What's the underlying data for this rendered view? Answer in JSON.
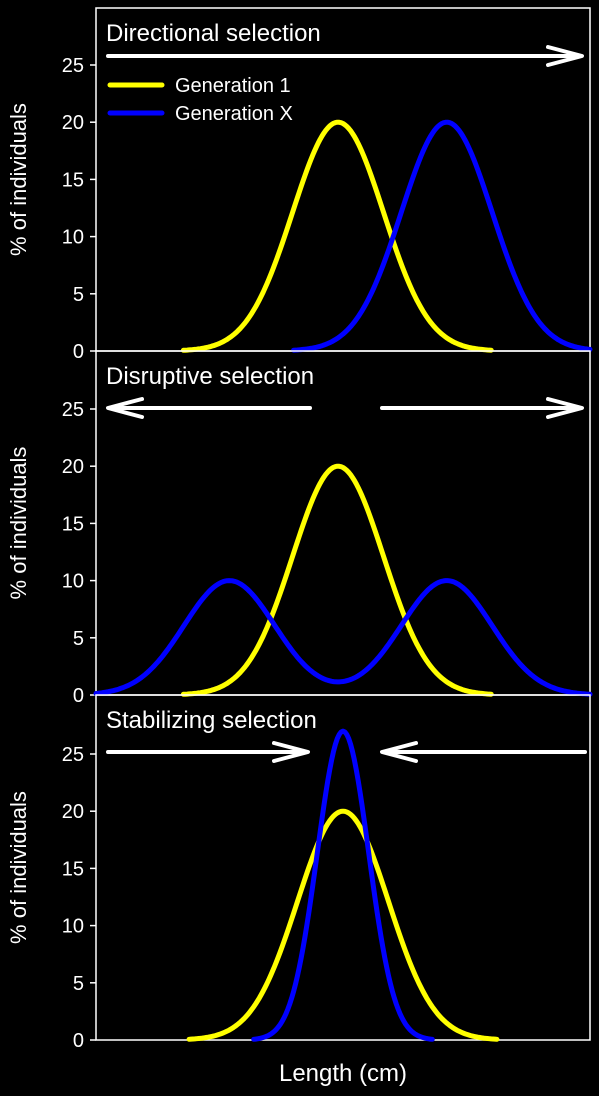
{
  "colors": {
    "background": "#000000",
    "axis": "#ffffff",
    "text": "#ffffff",
    "generation_1": "#ffff00",
    "generation_x": "#0000ff",
    "arrow": "#ffffff"
  },
  "figure": {
    "xlabel": "Length (cm)"
  },
  "chart_data": [
    {
      "type": "line",
      "title": "Directional selection",
      "xlabel": "",
      "ylabel": "% of individuals",
      "yticks": [
        0,
        5,
        10,
        15,
        20,
        25
      ],
      "ylim": [
        0,
        27
      ],
      "xlim": [
        0,
        100
      ],
      "grid": false,
      "legend_position": "top-left",
      "arrows": [
        "right"
      ],
      "series": [
        {
          "name": "Generation 1",
          "color": "#ffff00",
          "mean": 49,
          "sd": 9.2,
          "peak": 20
        },
        {
          "name": "Generation X",
          "color": "#0000ff",
          "mean": 71,
          "sd": 9.2,
          "peak": 20
        }
      ]
    },
    {
      "type": "line",
      "title": "Disruptive selection",
      "xlabel": "",
      "ylabel": "% of individuals",
      "yticks": [
        0,
        5,
        10,
        15,
        20,
        25
      ],
      "ylim": [
        0,
        27
      ],
      "xlim": [
        0,
        100
      ],
      "grid": false,
      "arrows": [
        "left",
        "right"
      ],
      "series": [
        {
          "name": "Generation 1",
          "color": "#ffff00",
          "mean": 49,
          "sd": 9.2,
          "peak": 20
        },
        {
          "name": "Generation X",
          "color": "#0000ff",
          "modes": [
            27,
            71
          ],
          "sd": 9.2,
          "peak": 10
        }
      ]
    },
    {
      "type": "line",
      "title": "Stabilizing  selection",
      "xlabel": "",
      "ylabel": "% of individuals",
      "yticks": [
        0,
        5,
        10,
        15,
        20,
        25
      ],
      "ylim": [
        0,
        27
      ],
      "xlim": [
        0,
        100
      ],
      "grid": false,
      "arrows": [
        "inward"
      ],
      "series": [
        {
          "name": "Generation 1",
          "color": "#ffff00",
          "mean": 50,
          "sd": 9.2,
          "peak": 20
        },
        {
          "name": "Generation X",
          "color": "#0000ff",
          "mean": 50,
          "sd": 5.2,
          "peak": 27
        }
      ]
    }
  ]
}
